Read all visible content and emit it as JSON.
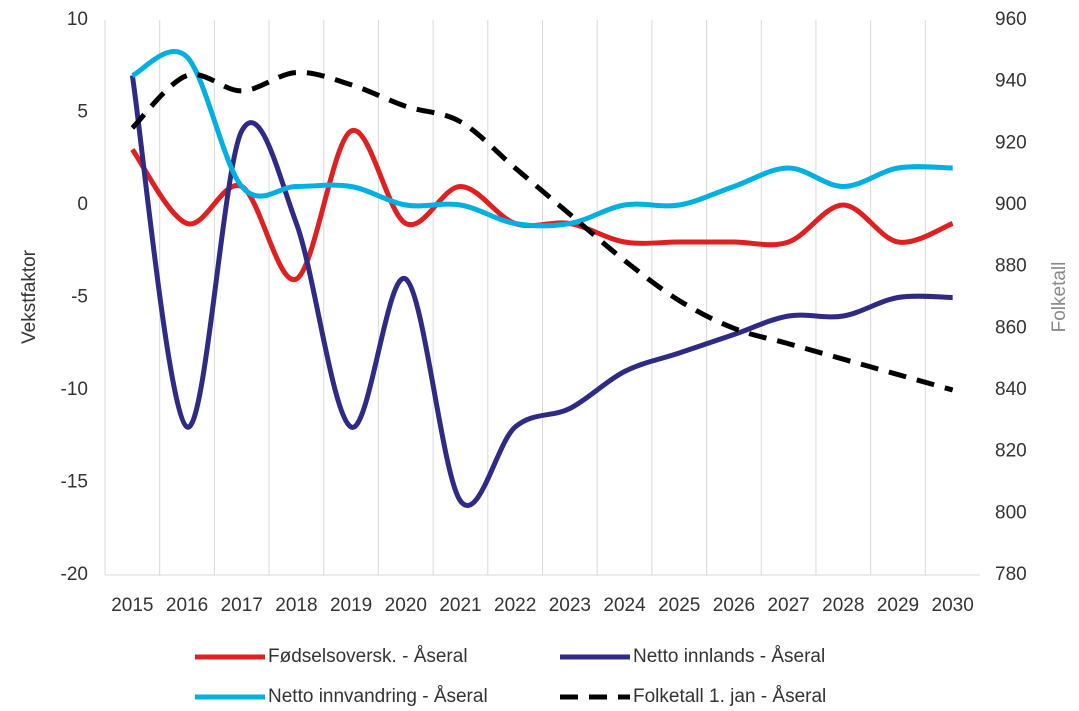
{
  "chart_data": {
    "type": "line",
    "categories": [
      "2015",
      "2016",
      "2017",
      "2018",
      "2019",
      "2020",
      "2021",
      "2022",
      "2023",
      "2024",
      "2025",
      "2026",
      "2027",
      "2028",
      "2029",
      "2030"
    ],
    "ylabel": "Vekstfaktor",
    "y2label": "Folketall",
    "ylim": [
      -20,
      10
    ],
    "yticks": [
      -20,
      -15,
      -10,
      -5,
      0,
      5,
      10
    ],
    "y2lim": [
      780,
      960
    ],
    "y2ticks": [
      780,
      800,
      820,
      840,
      860,
      880,
      900,
      920,
      940,
      960
    ],
    "legend": "bottom",
    "smooth": true,
    "grid": "vertical",
    "series": [
      {
        "name": "Fødselsoversk. - Åseral",
        "color": "#e02020",
        "values": [
          3,
          -1,
          1,
          -4,
          4,
          -1,
          1,
          -1,
          -1,
          -2,
          -2,
          -2,
          -2,
          0,
          -2,
          -1
        ]
      },
      {
        "name": "Netto innlands - Åseral",
        "color": "#2e2a86",
        "values": [
          7,
          -12,
          4,
          -1,
          -12,
          -4,
          -16,
          -12,
          -11,
          -9,
          -8,
          -7,
          -6,
          -6,
          -5,
          -5
        ]
      },
      {
        "name": "Netto innvandring - Åseral",
        "color": "#00b0e0",
        "values": [
          7,
          8,
          1,
          1,
          1,
          0,
          0,
          -1,
          -1,
          0,
          0,
          1,
          2,
          1,
          2,
          2
        ]
      },
      {
        "name": "Folketall 1. jan - Åseral",
        "color": "#000000",
        "dashed": true,
        "axis": "y2",
        "values": [
          925,
          942,
          937,
          943,
          939,
          932,
          927,
          912,
          897,
          882,
          869,
          860,
          855,
          850,
          845,
          840
        ]
      }
    ]
  }
}
